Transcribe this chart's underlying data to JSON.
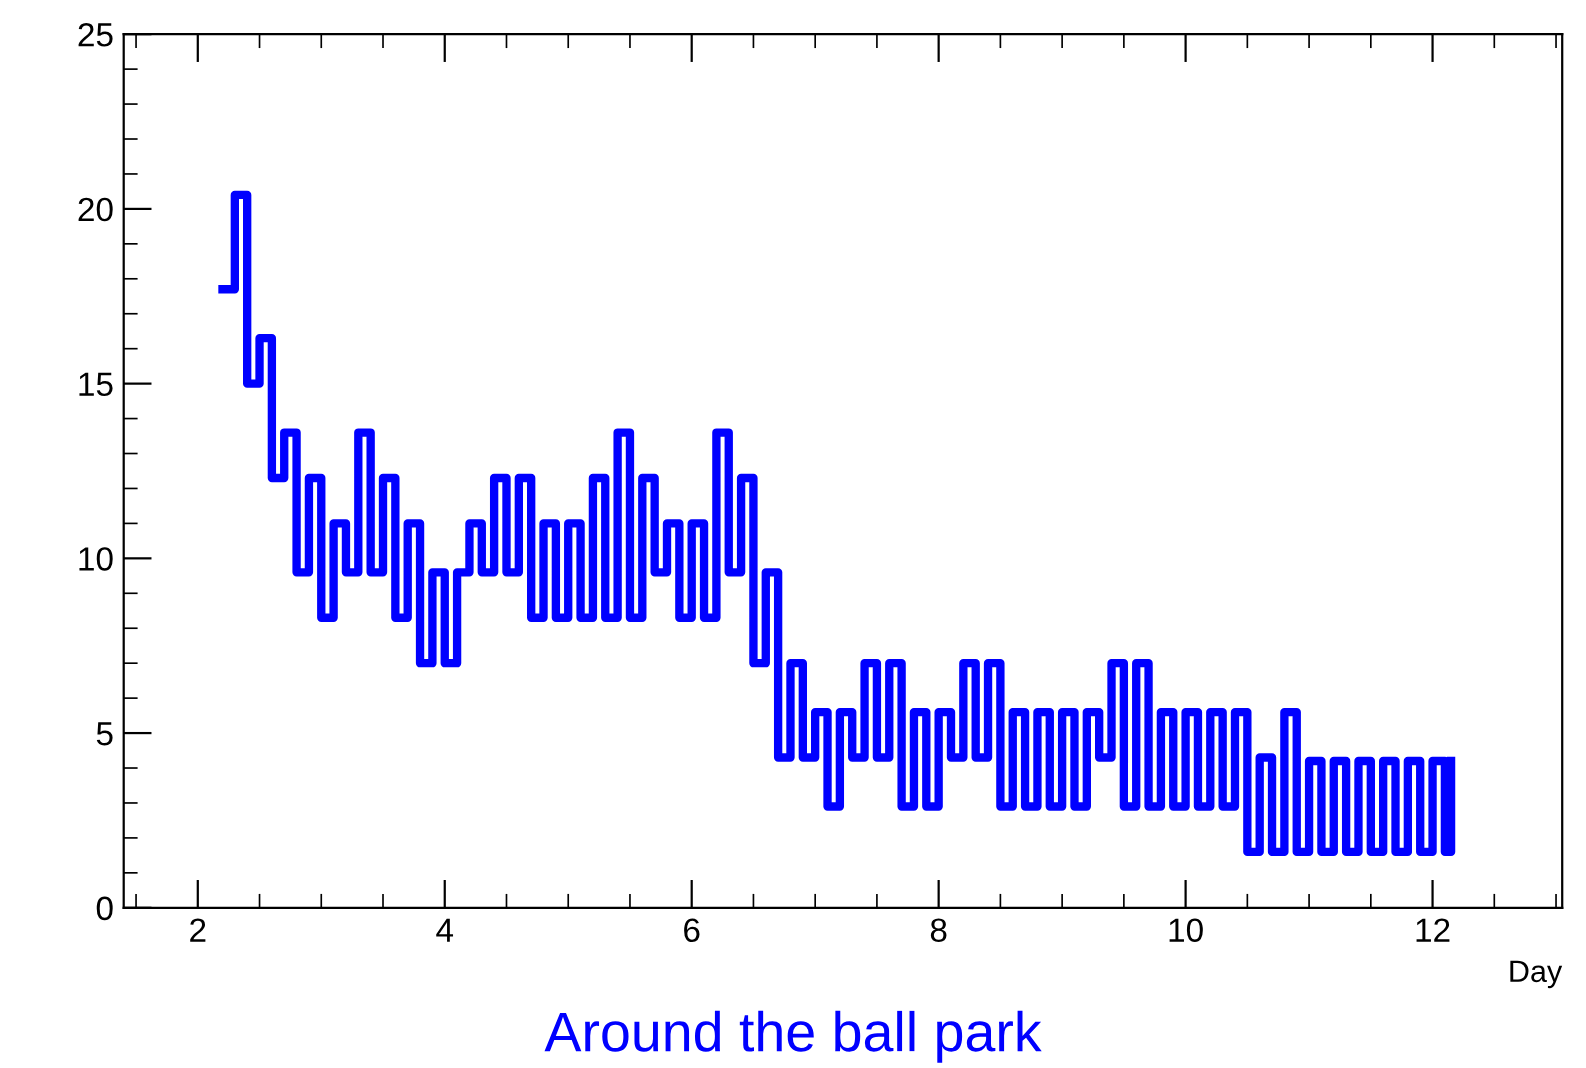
{
  "chart_data": {
    "type": "step",
    "xlabel": "Day",
    "xlim": [
      1.4,
      13.05
    ],
    "xticks": [
      2,
      4,
      6,
      8,
      10,
      12
    ],
    "ylim": [
      0,
      25
    ],
    "yticks": [
      0,
      5,
      10,
      15,
      20,
      25
    ],
    "grid": false,
    "line_style": "solid",
    "marker": "none",
    "annotations": [
      "Around the ball park"
    ],
    "series": [
      {
        "color": "#0000ff",
        "x": [
          2.2,
          2.3,
          2.4,
          2.5,
          2.6,
          2.7,
          2.8,
          2.9,
          3.0,
          3.1,
          3.2,
          3.3,
          3.4,
          3.5,
          3.6,
          3.7,
          3.8,
          3.9,
          4.0,
          4.1,
          4.2,
          4.3,
          4.4,
          4.5,
          4.6,
          4.7,
          4.8,
          4.9,
          5.0,
          5.1,
          5.2,
          5.3,
          5.4,
          5.5,
          5.6,
          5.7,
          5.8,
          5.9,
          6.0,
          6.1,
          6.2,
          6.3,
          6.4,
          6.5,
          6.6,
          6.7,
          6.8,
          6.9,
          7.0,
          7.1,
          7.2,
          7.3,
          7.4,
          7.5,
          7.6,
          7.7,
          7.8,
          7.9,
          8.0,
          8.1,
          8.2,
          8.3,
          8.4,
          8.5,
          8.6,
          8.7,
          8.8,
          8.9,
          9.0,
          9.1,
          9.2,
          9.3,
          9.4,
          9.5,
          9.6,
          9.7,
          9.8,
          9.9,
          10.0,
          10.1,
          10.2,
          10.3,
          10.4,
          10.5,
          10.6,
          10.7,
          10.8,
          10.9,
          11.0,
          11.1,
          11.2,
          11.3,
          11.4,
          11.5,
          11.6,
          11.7,
          11.8,
          11.9,
          12.0,
          12.1,
          12.15
        ],
        "values": [
          17.7,
          20.4,
          15.0,
          16.3,
          12.3,
          13.6,
          9.6,
          12.3,
          8.3,
          11.0,
          9.6,
          13.6,
          9.6,
          12.3,
          8.3,
          11.0,
          7.0,
          9.6,
          7.0,
          9.6,
          11.0,
          9.6,
          12.3,
          9.6,
          12.3,
          8.3,
          11.0,
          8.3,
          11.0,
          8.3,
          12.3,
          8.3,
          13.6,
          8.3,
          12.3,
          9.6,
          11.0,
          8.3,
          11.0,
          8.3,
          13.6,
          9.6,
          12.3,
          7.0,
          9.6,
          4.3,
          7.0,
          4.3,
          5.6,
          2.9,
          5.6,
          4.3,
          7.0,
          4.3,
          7.0,
          2.9,
          5.6,
          2.9,
          5.6,
          4.3,
          7.0,
          4.3,
          7.0,
          2.9,
          5.6,
          2.9,
          5.6,
          2.9,
          5.6,
          2.9,
          5.6,
          4.3,
          7.0,
          2.9,
          7.0,
          2.9,
          5.6,
          2.9,
          5.6,
          2.9,
          5.6,
          2.9,
          5.6,
          1.6,
          4.3,
          1.6,
          5.6,
          1.6,
          4.2,
          1.6,
          4.2,
          1.6,
          4.2,
          1.6,
          4.2,
          1.6,
          4.2,
          1.6,
          4.2,
          1.6,
          4.2
        ]
      }
    ]
  }
}
